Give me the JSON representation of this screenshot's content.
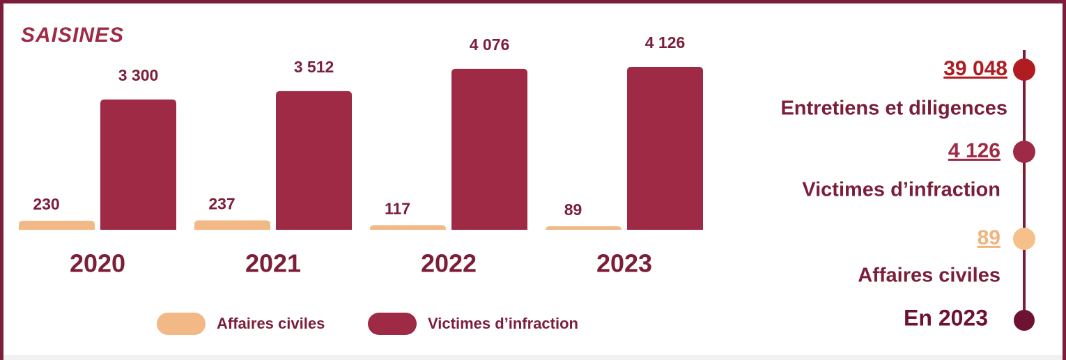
{
  "chart_data": {
    "type": "bar",
    "title": "SAISINES",
    "categories": [
      "2020",
      "2021",
      "2022",
      "2023"
    ],
    "series": [
      {
        "name": "Affaires civiles",
        "color": "#f2b886",
        "values": [
          230,
          237,
          117,
          89
        ],
        "value_labels": [
          "230",
          "237",
          "117",
          "89"
        ]
      },
      {
        "name": "Victimes d’infraction",
        "color": "#9e2a45",
        "values": [
          3300,
          3512,
          4076,
          4126
        ],
        "value_labels": [
          "3 300",
          "3 512",
          "4 076",
          "4 126"
        ]
      }
    ]
  },
  "highlights": {
    "items": [
      {
        "value": 39048,
        "value_label": "39 048",
        "label": "Entretiens et diligences",
        "color": "#b01c22"
      },
      {
        "value": 4126,
        "value_label": "4 126",
        "label": "Victimes d’infraction",
        "color": "#9e2a45"
      },
      {
        "value": 89,
        "value_label": "89",
        "label": "Affaires civiles",
        "color": "#f5c08a"
      }
    ],
    "footer": "En 2023"
  }
}
